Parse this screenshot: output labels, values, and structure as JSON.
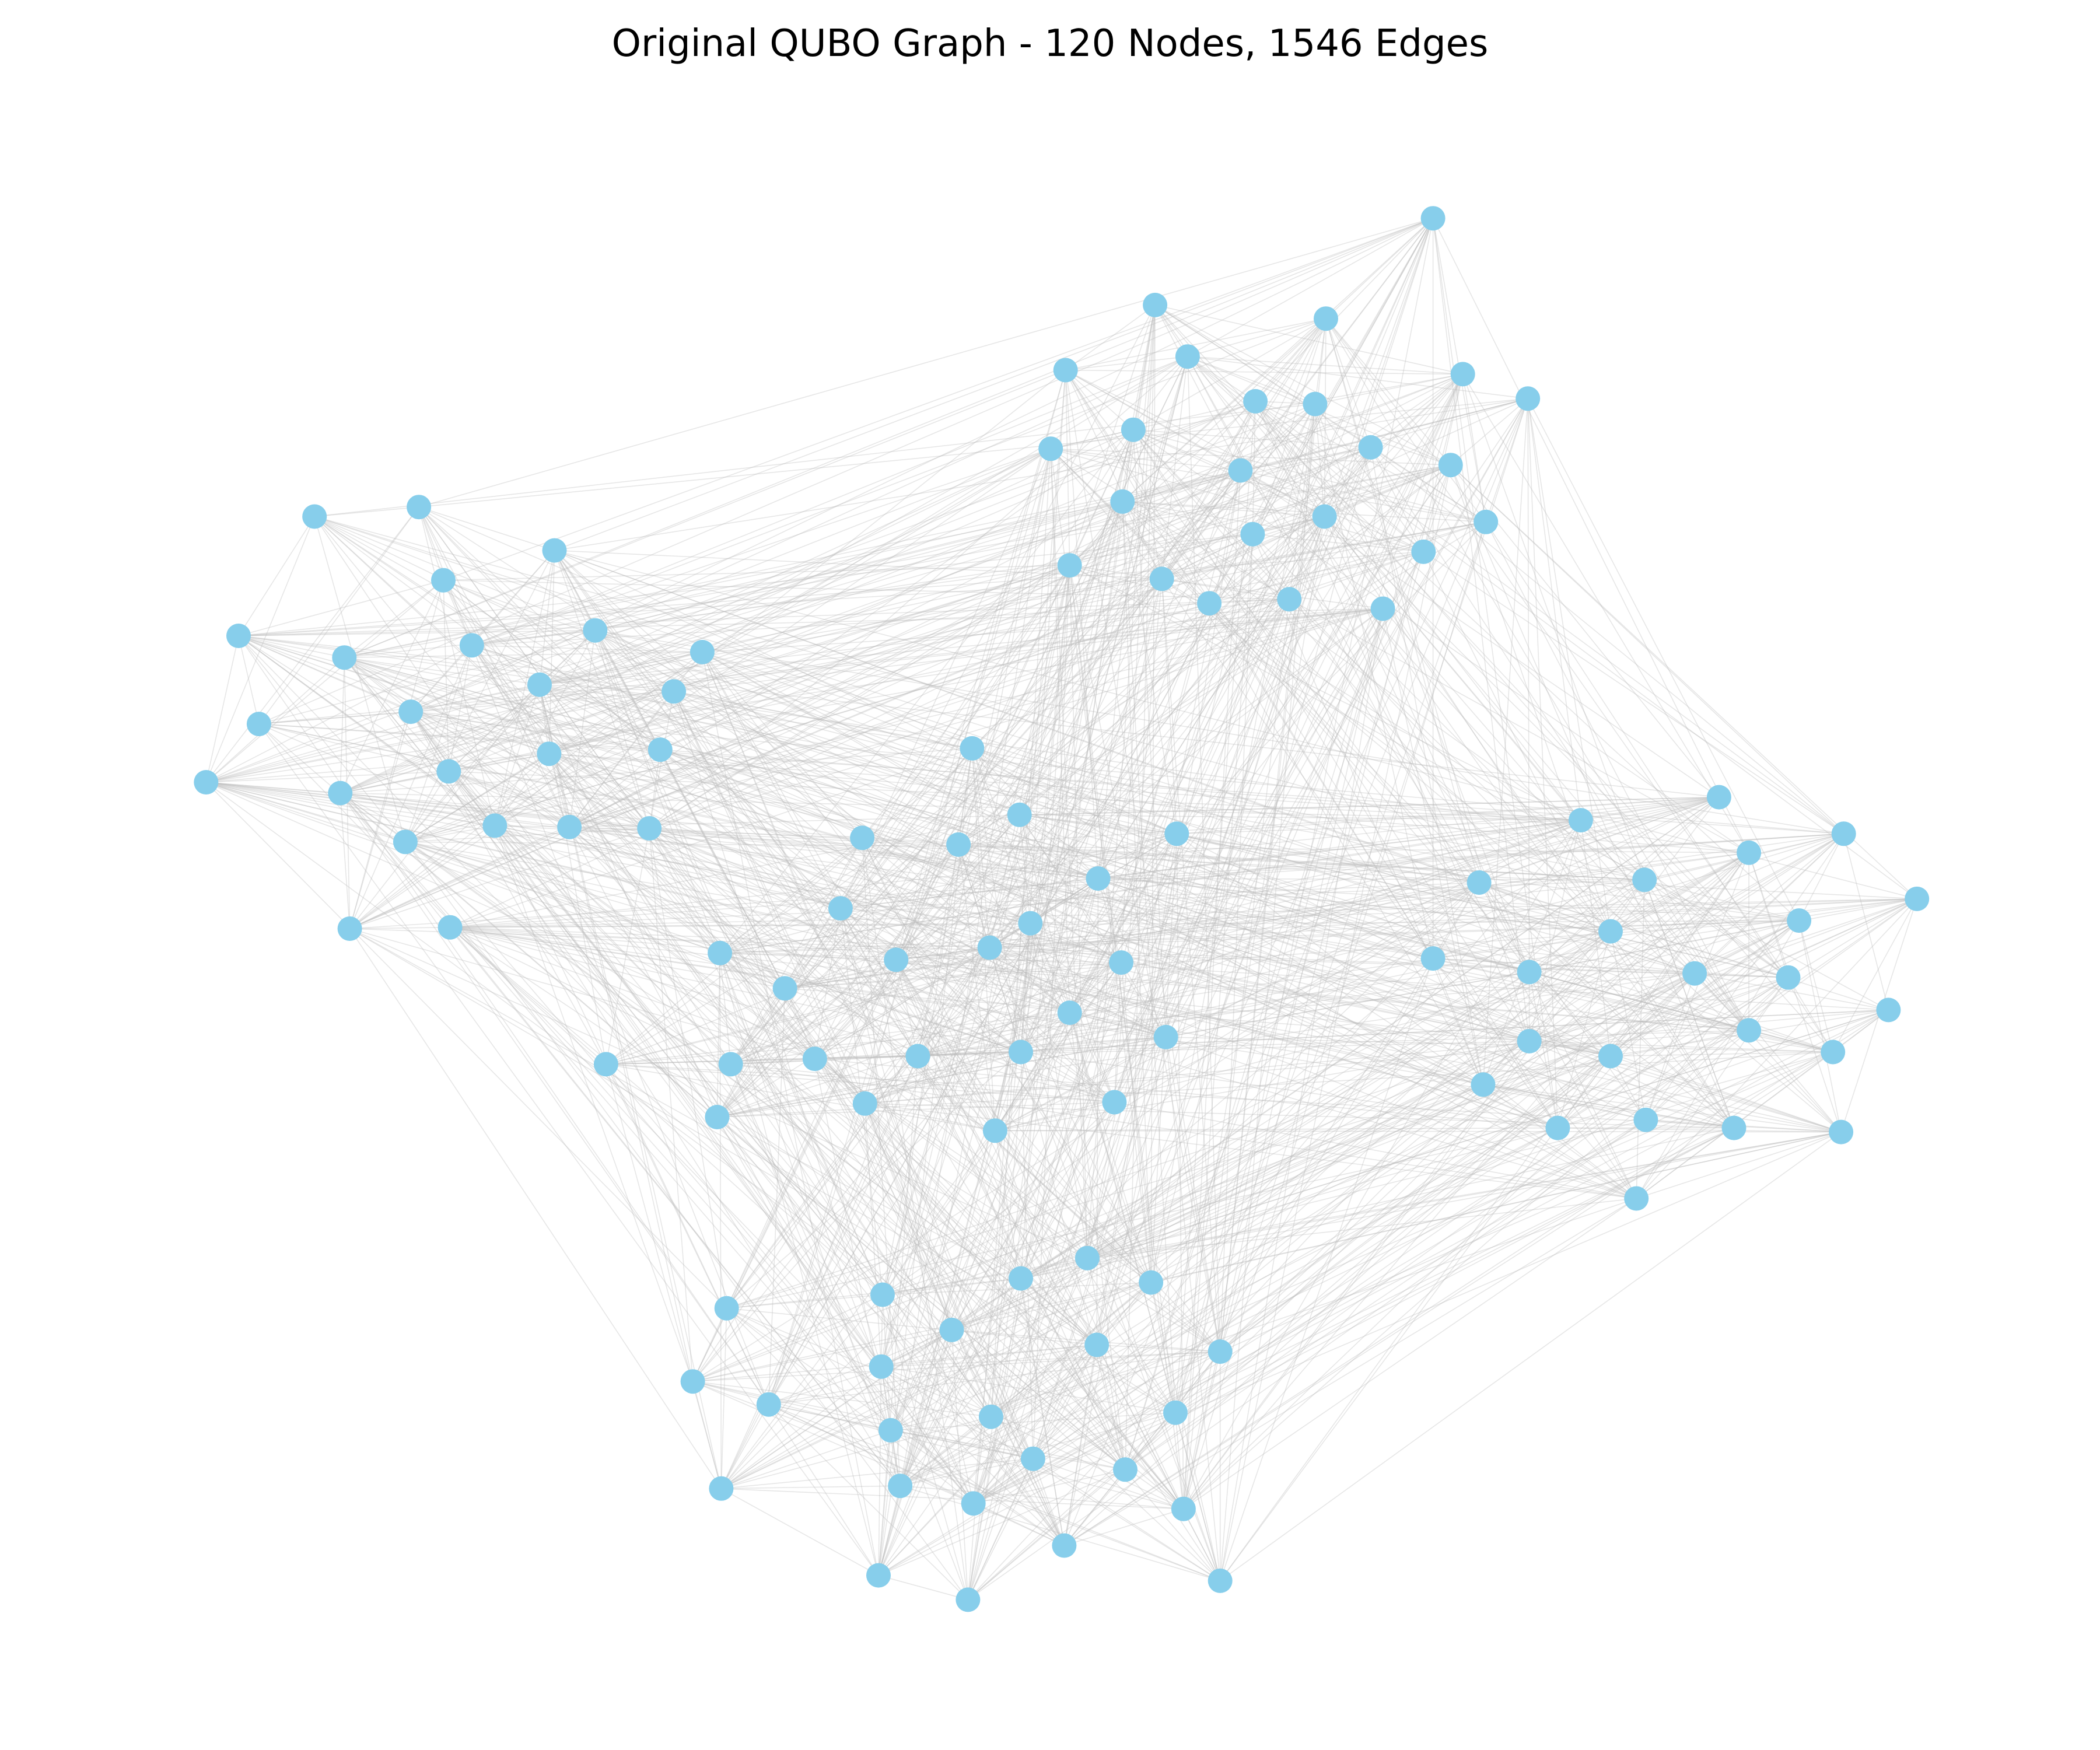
{
  "title": "Original QUBO Graph - 120 Nodes, 1546 Edges",
  "node_color": "#87ceeb",
  "edge_color": "#bdbdbd",
  "chart_data": {
    "type": "network",
    "title": "Original QUBO Graph - 120 Nodes, 1546 Edges",
    "node_count": 120,
    "edge_count": 1546,
    "clusters": 5,
    "axes_visible": false
  }
}
